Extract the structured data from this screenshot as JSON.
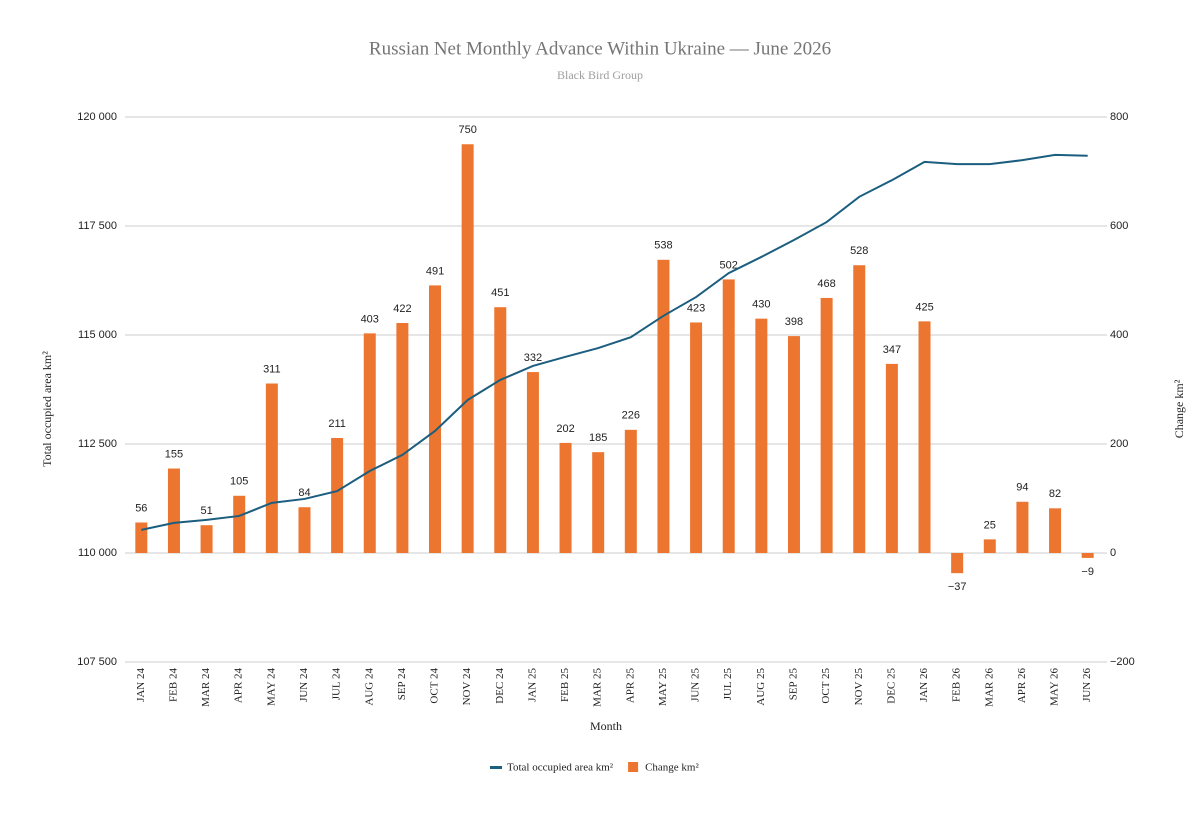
{
  "chart_data": {
    "type": "combo",
    "title": "Russian Net Monthly Advance Within Ukraine — June 2026",
    "subtitle": "Black Bird Group",
    "x_label": "Month",
    "y_label": "Total occupied area km²",
    "y2_label": "Change km²",
    "categories": [
      "JAN 24",
      "FEB 24",
      "MAR 24",
      "APR 24",
      "MAY 24",
      "JUN 24",
      "JUL 24",
      "AUG 24",
      "SEP 24",
      "OCT 24",
      "NOV 24",
      "DEC 24",
      "JAN 25",
      "FEB 25",
      "MAR 25",
      "APR 25",
      "MAY 25",
      "JUN 25",
      "JUL 25",
      "AUG 25",
      "SEP 25",
      "OCT 25",
      "NOV 25",
      "DEC 25",
      "JAN 26",
      "FEB 26",
      "MAR 26",
      "APR 26",
      "MAY 26",
      "JUN 26"
    ],
    "series": [
      {
        "name": "Total occupied area km²",
        "type": "line",
        "axis": "y",
        "color": "#1b5e7f",
        "values": [
          110530,
          110690,
          110760,
          110850,
          111150,
          111240,
          111420,
          111880,
          112250,
          112800,
          113510,
          113970,
          114290,
          114500,
          114700,
          114950,
          115440,
          115870,
          116420,
          116790,
          117180,
          117590,
          118170,
          118550,
          118970,
          118920,
          118920,
          119010,
          119130,
          119110
        ]
      },
      {
        "name": "Change km²",
        "type": "bar",
        "axis": "y2",
        "color": "#ec7630",
        "values": [
          56,
          155,
          51,
          105,
          311,
          84,
          211,
          403,
          422,
          491,
          750,
          451,
          332,
          202,
          185,
          226,
          538,
          423,
          502,
          430,
          398,
          468,
          528,
          347,
          425,
          -37,
          25,
          94,
          82,
          -9
        ],
        "value_labels": [
          "56",
          "155",
          "51",
          "105",
          "311",
          "84",
          "211",
          "403",
          "422",
          "491",
          "750",
          "451",
          "332",
          "202",
          "185",
          "226",
          "538",
          "423",
          "502",
          "430",
          "398",
          "468",
          "528",
          "347",
          "425",
          "−37",
          "25",
          "94",
          "82",
          "−9"
        ]
      }
    ],
    "ylim": [
      107500,
      120000
    ],
    "yticks": [
      {
        "value": 107500,
        "label": "107 500"
      },
      {
        "value": 110000,
        "label": "110 000"
      },
      {
        "value": 112500,
        "label": "112 500"
      },
      {
        "value": 115000,
        "label": "115 000"
      },
      {
        "value": 117500,
        "label": "117 500"
      },
      {
        "value": 120000,
        "label": "120 000"
      }
    ],
    "y2lim": [
      -200,
      800
    ],
    "y2ticks": [
      {
        "value": -200,
        "label": "−200"
      },
      0,
      200,
      400,
      600,
      800
    ],
    "grid": true,
    "legend": "bottom"
  }
}
